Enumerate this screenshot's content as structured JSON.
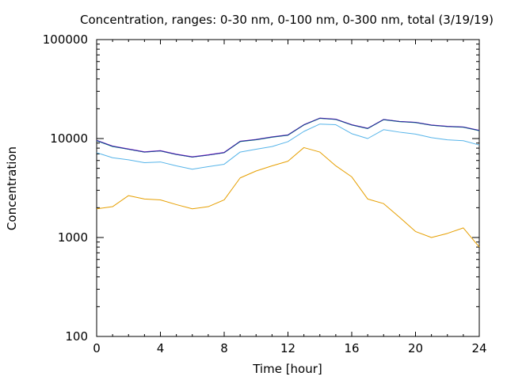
{
  "chart_data": {
    "type": "line",
    "title": "Concentration, ranges: 0-30 nm, 0-100 nm, 0-300 nm, total (3/19/19)",
    "xlabel": "Time [hour]",
    "ylabel": "Concentration",
    "xlim": [
      0,
      24
    ],
    "ylim": [
      100,
      100000
    ],
    "yscale": "log",
    "grid": false,
    "x_ticks": [
      {
        "value": 0,
        "label": "0"
      },
      {
        "value": 4,
        "label": "4"
      },
      {
        "value": 8,
        "label": "8"
      },
      {
        "value": 12,
        "label": "12"
      },
      {
        "value": 16,
        "label": "16"
      },
      {
        "value": 20,
        "label": "20"
      },
      {
        "value": 24,
        "label": "24"
      }
    ],
    "y_ticks": [
      {
        "value": 100,
        "label": "100"
      },
      {
        "value": 1000,
        "label": "1000"
      },
      {
        "value": 10000,
        "label": "10000"
      },
      {
        "value": 100000,
        "label": "100000"
      }
    ],
    "x": [
      0,
      1,
      2,
      3,
      4,
      5,
      6,
      7,
      8,
      9,
      10,
      11,
      12,
      13,
      14,
      15,
      16,
      17,
      18,
      19,
      20,
      21,
      22,
      23,
      24
    ],
    "series": [
      {
        "color": "#e69f00",
        "values": [
          1950,
          2050,
          2650,
          2450,
          2400,
          2150,
          1950,
          2050,
          2400,
          4000,
          4700,
          5300,
          5900,
          8100,
          7300,
          5300,
          4100,
          2450,
          2200,
          1600,
          1150,
          1000,
          1100,
          1250,
          800
        ]
      },
      {
        "color": "#56b4e9",
        "values": [
          7200,
          6400,
          6100,
          5700,
          5800,
          5300,
          4900,
          5200,
          5500,
          7300,
          7800,
          8300,
          9300,
          11800,
          14000,
          13800,
          11200,
          10000,
          12300,
          11600,
          11100,
          10200,
          9700,
          9500,
          8600
        ]
      },
      {
        "color": "#009e73",
        "values": [
          9500,
          8300,
          7800,
          7300,
          7500,
          6900,
          6500,
          6800,
          7200,
          9300,
          9700,
          10300,
          10800,
          13700,
          16000,
          15600,
          13700,
          12600,
          15500,
          14800,
          14500,
          13600,
          13200,
          13000,
          12000
        ]
      },
      {
        "color": "#9400d3",
        "values": [
          9600,
          8400,
          7850,
          7350,
          7550,
          6950,
          6550,
          6850,
          7250,
          9400,
          9800,
          10400,
          10900,
          13800,
          16100,
          15700,
          13800,
          12700,
          15600,
          14900,
          14600,
          13700,
          13300,
          13100,
          12100
        ]
      },
      {
        "color": "#1f3a93",
        "values": [
          9550,
          8350,
          7800,
          7300,
          7500,
          6900,
          6500,
          6800,
          7200,
          9350,
          9750,
          10350,
          10850,
          13750,
          16050,
          15650,
          13750,
          12650,
          15550,
          14850,
          14550,
          13650,
          13250,
          13050,
          12050
        ]
      }
    ]
  }
}
